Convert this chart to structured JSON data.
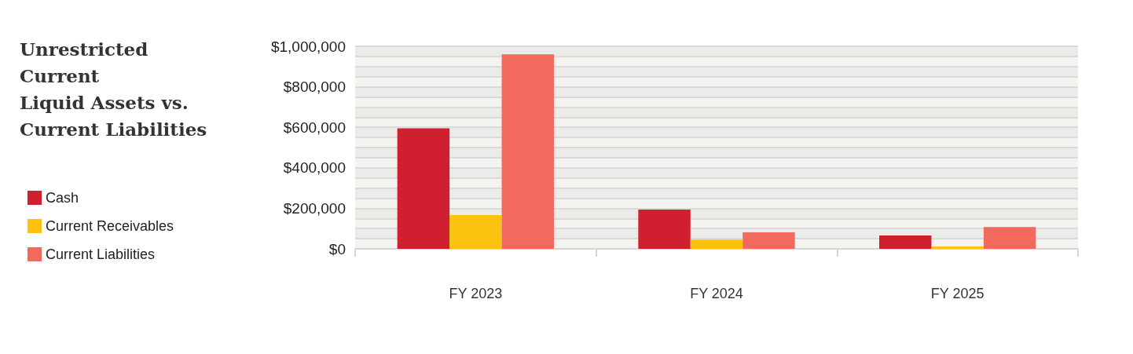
{
  "chart_data": {
    "type": "bar",
    "title": "Unrestricted\nCurrent\nLiquid Assets vs.\nCurrent Liabilities",
    "categories": [
      "FY 2023",
      "FY 2024",
      "FY 2025"
    ],
    "series": [
      {
        "name": "Cash",
        "color": "#d0202f",
        "values": [
          595000,
          194000,
          66000
        ]
      },
      {
        "name": "Current Receivables",
        "color": "#fbc20f",
        "values": [
          167000,
          46000,
          12000
        ]
      },
      {
        "name": "Current Liabilities",
        "color": "#f26a5e",
        "values": [
          960000,
          81000,
          108000
        ]
      }
    ],
    "ylim": [
      0,
      1000000
    ],
    "yticks": [
      {
        "value": 0,
        "label": "$0"
      },
      {
        "value": 50000,
        "label": null
      },
      {
        "value": 100000,
        "label": null
      },
      {
        "value": 150000,
        "label": null
      },
      {
        "value": 200000,
        "label": "$200,000"
      },
      {
        "value": 250000,
        "label": null
      },
      {
        "value": 300000,
        "label": null
      },
      {
        "value": 350000,
        "label": null
      },
      {
        "value": 400000,
        "label": "$400,000"
      },
      {
        "value": 450000,
        "label": null
      },
      {
        "value": 500000,
        "label": null
      },
      {
        "value": 550000,
        "label": null
      },
      {
        "value": 600000,
        "label": "$600,000"
      },
      {
        "value": 650000,
        "label": null
      },
      {
        "value": 700000,
        "label": null
      },
      {
        "value": 750000,
        "label": null
      },
      {
        "value": 800000,
        "label": "$800,000"
      },
      {
        "value": 850000,
        "label": null
      },
      {
        "value": 900000,
        "label": null
      },
      {
        "value": 950000,
        "label": null
      },
      {
        "value": 1000000,
        "label": "$1,000,000"
      }
    ],
    "grid": "y",
    "legend": "left"
  }
}
